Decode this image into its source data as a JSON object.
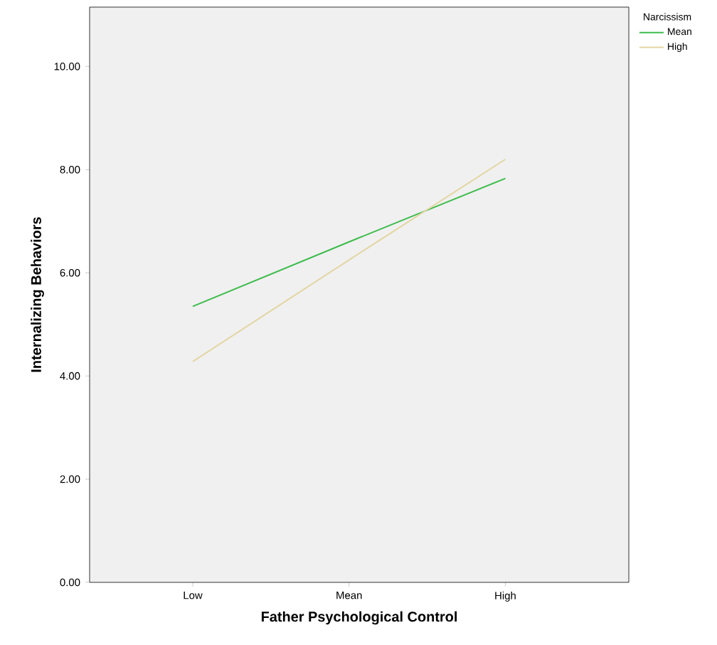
{
  "chart_data": {
    "type": "line",
    "xlabel": "Father Psychological Control",
    "ylabel": "Internalizing Behaviors",
    "legend_title": "Narcissism",
    "categories": [
      "Low",
      "Mean",
      "High"
    ],
    "series": [
      {
        "name": "Mean",
        "color": "#3dbb4c",
        "values": [
          5.35,
          6.6,
          7.83
        ]
      },
      {
        "name": "High",
        "color": "#e3d6a4",
        "values": [
          4.28,
          6.25,
          8.2
        ]
      }
    ],
    "ylim": [
      0,
      11.15
    ],
    "yticks": [
      {
        "value": 0,
        "label": "0.00"
      },
      {
        "value": 2,
        "label": "2.00"
      },
      {
        "value": 4,
        "label": "4.00"
      },
      {
        "value": 6,
        "label": "6.00"
      },
      {
        "value": 8,
        "label": "8.00"
      },
      {
        "value": 10,
        "label": "10.00"
      }
    ],
    "grid": false,
    "legend": "top right",
    "marker": "none",
    "line_style": "solid"
  }
}
